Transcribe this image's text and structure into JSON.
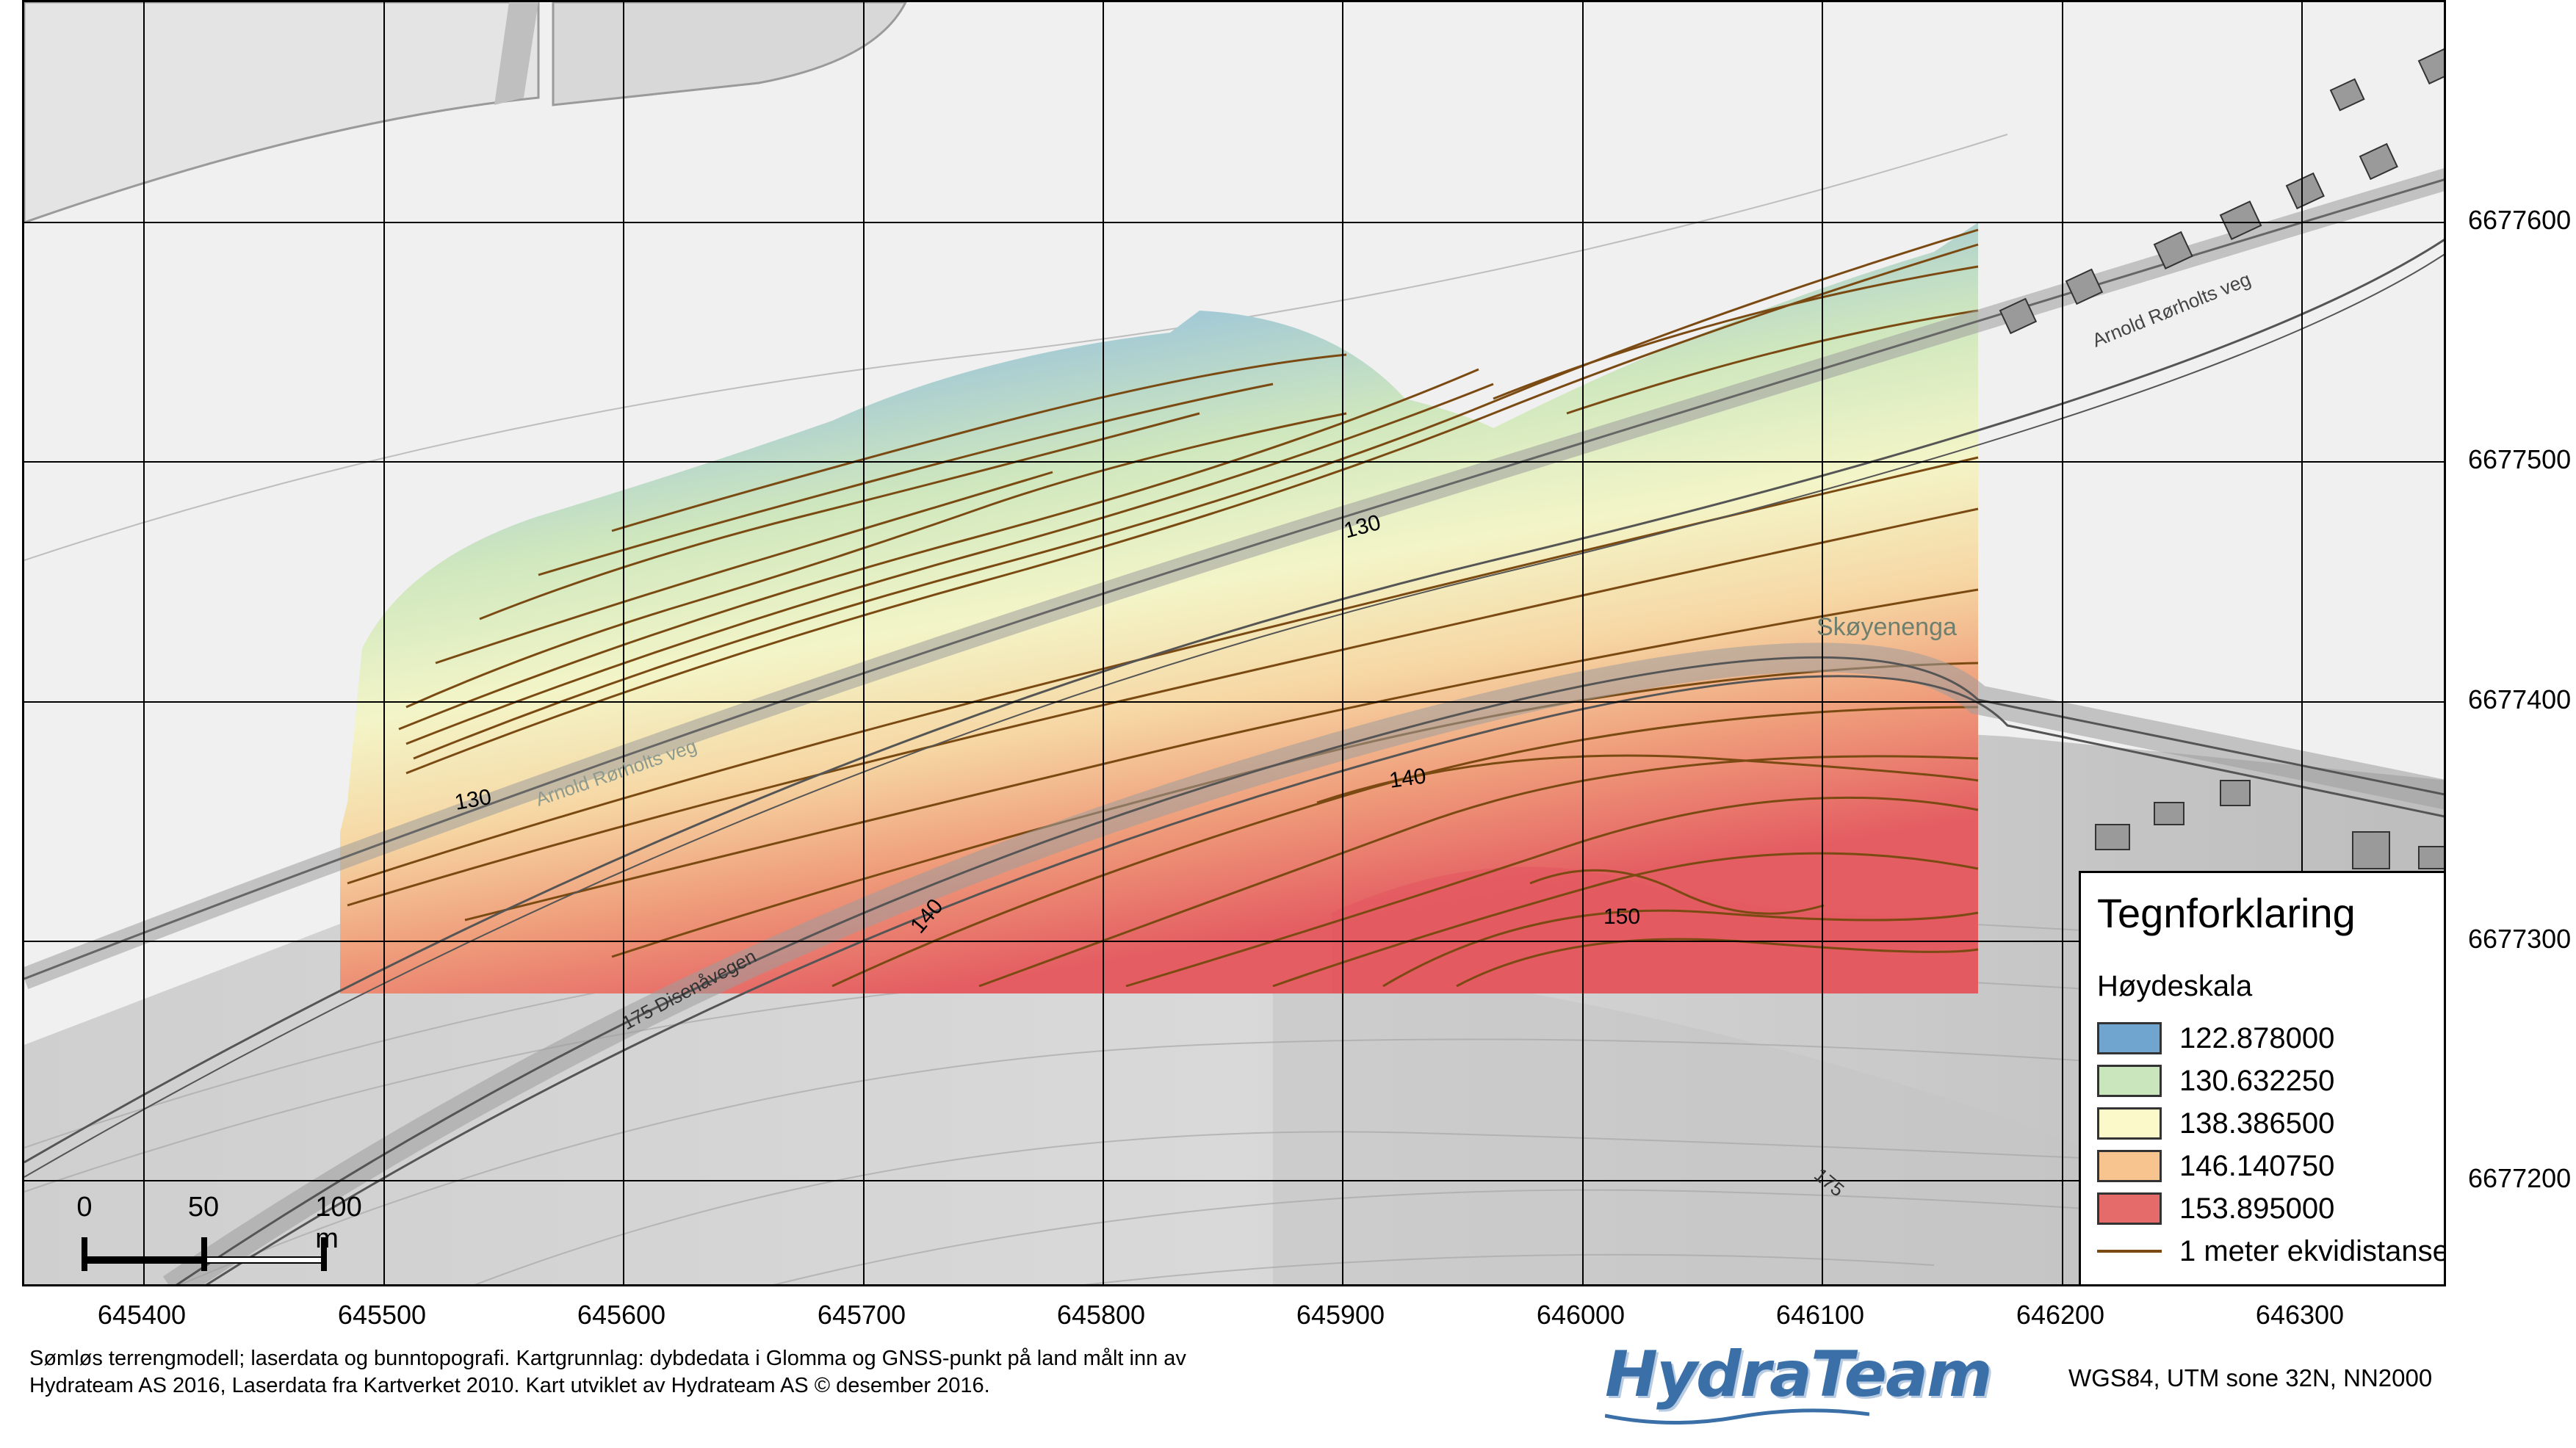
{
  "map": {
    "x_ticks": [
      "645400",
      "645500",
      "645600",
      "645700",
      "645800",
      "645900",
      "646000",
      "646100",
      "646200",
      "646300"
    ],
    "y_ticks": [
      "6677600",
      "6677500",
      "6677400",
      "6677300",
      "6677200"
    ],
    "place_label": "Skøyenenga",
    "road_labels": [
      "Arnold Rørholts veg",
      "Arnold Rørholts veg",
      "175 Disenåvegen"
    ],
    "contour_labels": [
      "130",
      "130",
      "140",
      "140",
      "150",
      "175"
    ]
  },
  "legend": {
    "title": "Tegnforklaring",
    "subtitle": "Høydeskala",
    "items": [
      {
        "label": "122.878000",
        "color": "#6fa5cf"
      },
      {
        "label": "130.632250",
        "color": "#c9e6bd"
      },
      {
        "label": "138.386500",
        "color": "#fbf9c9"
      },
      {
        "label": "146.140750",
        "color": "#f7c38f"
      },
      {
        "label": "153.895000",
        "color": "#e56b6b"
      }
    ],
    "line_item": {
      "label": "1 meter ekvidistanse",
      "color": "#7a4a12"
    }
  },
  "scale_bar": {
    "labels": [
      "0",
      "50",
      "100 m"
    ]
  },
  "footer": {
    "credit": "Sømløs terrengmodell; laserdata og bunntopografi. Kartgrunnlag: dybdedata i Glomma og GNSS-punkt på land målt inn av Hydrateam AS 2016, Laserdata fra Kartverket 2010. Kart utviklet av Hydrateam AS © desember 2016.",
    "logo": "HydraTeam",
    "crs": "WGS84, UTM sone 32N, NN2000"
  }
}
